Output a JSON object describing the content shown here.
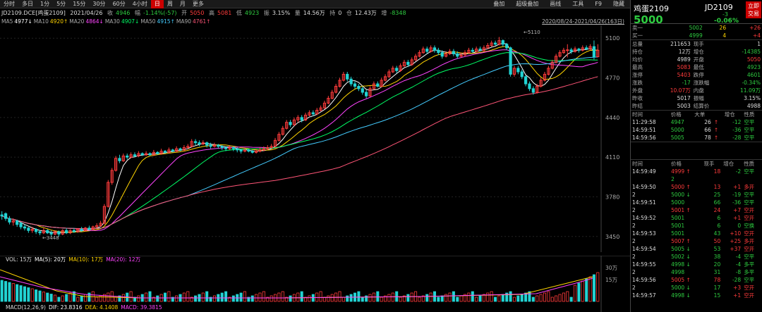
{
  "toolbar": {
    "items": [
      "分时",
      "多日",
      "1分",
      "5分",
      "15分",
      "30分",
      "60分",
      "4小时",
      "日",
      "周",
      "月",
      "更多"
    ],
    "active_index": 8,
    "right_items": [
      "叠加",
      "超级叠加",
      "画线",
      "工具",
      "F9",
      "隐藏"
    ]
  },
  "info": {
    "code": "JD2109.DCE[鸡蛋2109]",
    "date": "2021/04/26",
    "close_label": "收",
    "close_value": "4946",
    "change_label": "幅",
    "change_value": "-1.14%(-57)",
    "open_label": "开",
    "open_value": "5050",
    "high_label": "高",
    "high_value": "5081",
    "low_label": "低",
    "low_value": "4923",
    "amp_label": "振",
    "amp_value": "3.15%",
    "vol_label": "量",
    "vol_value": "14.56万",
    "pos_label": "持",
    "pos_value": "0",
    "amt_label": "仓",
    "amt_value": "12.43万",
    "inc_label": "增",
    "inc_value": "-8348"
  },
  "ma": [
    {
      "label": "MA5",
      "value": "4977↓",
      "color": "#ffffff"
    },
    {
      "label": "MA10",
      "value": "4920↑",
      "color": "#ffd400"
    },
    {
      "label": "MA20",
      "value": "4864↓",
      "color": "#ff44ff"
    },
    {
      "label": "MA30",
      "value": "4907↓",
      "color": "#00ff66"
    },
    {
      "label": "MA50",
      "value": "4915↑",
      "color": "#44ccff"
    },
    {
      "label": "MA90",
      "value": "4761↑",
      "color": "#ff5577"
    }
  ],
  "range_label": "2020/08/24-2021/04/26(163日)",
  "chart_data": {
    "type": "candlestick",
    "y_ticks": [
      "5100",
      "4770",
      "4440",
      "4110",
      "3780",
      "3450"
    ],
    "ylim": [
      3390,
      5160
    ],
    "high_label": "5110",
    "low_label": "3448",
    "candles": [
      [
        3630,
        3620,
        3660,
        3590
      ],
      [
        3640,
        3600,
        3650,
        3580
      ],
      [
        3600,
        3570,
        3620,
        3550
      ],
      [
        3570,
        3580,
        3600,
        3540
      ],
      [
        3580,
        3550,
        3590,
        3530
      ],
      [
        3560,
        3530,
        3570,
        3510
      ],
      [
        3530,
        3520,
        3550,
        3500
      ],
      [
        3520,
        3500,
        3530,
        3480
      ],
      [
        3500,
        3510,
        3530,
        3480
      ],
      [
        3510,
        3490,
        3520,
        3470
      ],
      [
        3490,
        3480,
        3500,
        3460
      ],
      [
        3480,
        3500,
        3520,
        3470
      ],
      [
        3500,
        3480,
        3510,
        3470
      ],
      [
        3480,
        3470,
        3500,
        3450
      ],
      [
        3470,
        3490,
        3500,
        3460
      ],
      [
        3490,
        3470,
        3500,
        3448
      ],
      [
        3470,
        3500,
        3510,
        3460
      ],
      [
        3500,
        3480,
        3520,
        3470
      ],
      [
        3480,
        3500,
        3510,
        3470
      ],
      [
        3500,
        3490,
        3520,
        3480
      ],
      [
        3490,
        3510,
        3520,
        3480
      ],
      [
        3510,
        3500,
        3530,
        3490
      ],
      [
        3500,
        3520,
        3530,
        3490
      ],
      [
        3520,
        3510,
        3540,
        3500
      ],
      [
        3510,
        3530,
        3540,
        3500
      ],
      [
        3530,
        3540,
        3560,
        3520
      ],
      [
        3540,
        3560,
        3580,
        3530
      ],
      [
        3560,
        3700,
        3720,
        3550
      ],
      [
        3700,
        3900,
        3920,
        3690
      ],
      [
        3900,
        4000,
        4020,
        3880
      ],
      [
        4000,
        4100,
        4120,
        3990
      ],
      [
        4100,
        4080,
        4130,
        4060
      ],
      [
        4080,
        4120,
        4140,
        4070
      ],
      [
        4120,
        4110,
        4140,
        4090
      ],
      [
        4110,
        4130,
        4150,
        4100
      ],
      [
        4130,
        4120,
        4150,
        4110
      ],
      [
        4120,
        4140,
        4160,
        4110
      ],
      [
        4140,
        4130,
        4150,
        4120
      ],
      [
        4130,
        4140,
        4160,
        4120
      ],
      [
        4140,
        4130,
        4150,
        4120
      ],
      [
        4130,
        4150,
        4170,
        4120
      ],
      [
        4150,
        4140,
        4160,
        4130
      ],
      [
        4140,
        4160,
        4180,
        4130
      ],
      [
        4160,
        4150,
        4170,
        4140
      ],
      [
        4150,
        4170,
        4190,
        4140
      ],
      [
        4170,
        4160,
        4180,
        4150
      ],
      [
        4160,
        4180,
        4200,
        4150
      ],
      [
        4180,
        4170,
        4190,
        4160
      ],
      [
        4170,
        4190,
        4210,
        4160
      ],
      [
        4190,
        4200,
        4220,
        4180
      ],
      [
        4200,
        4240,
        4260,
        4190
      ],
      [
        4240,
        4230,
        4260,
        4210
      ],
      [
        4230,
        4220,
        4250,
        4200
      ],
      [
        4220,
        4230,
        4250,
        4210
      ],
      [
        4230,
        4210,
        4240,
        4190
      ],
      [
        4210,
        4200,
        4230,
        4180
      ],
      [
        4200,
        4210,
        4230,
        4190
      ],
      [
        4210,
        4200,
        4220,
        4180
      ],
      [
        4200,
        4190,
        4210,
        4170
      ],
      [
        4190,
        4180,
        4200,
        4160
      ],
      [
        4180,
        4190,
        4210,
        4170
      ],
      [
        4190,
        4180,
        4200,
        4160
      ],
      [
        4180,
        4170,
        4190,
        4150
      ],
      [
        4170,
        4160,
        4180,
        4140
      ],
      [
        4160,
        4170,
        4190,
        4150
      ],
      [
        4170,
        4160,
        4180,
        4150
      ],
      [
        4160,
        4150,
        4170,
        4140
      ],
      [
        4150,
        4160,
        4180,
        4140
      ],
      [
        4160,
        4170,
        4190,
        4150
      ],
      [
        4170,
        4180,
        4200,
        4160
      ],
      [
        4180,
        4190,
        4210,
        4170
      ],
      [
        4190,
        4200,
        4220,
        4180
      ],
      [
        4200,
        4250,
        4270,
        4190
      ],
      [
        4250,
        4300,
        4320,
        4240
      ],
      [
        4300,
        4350,
        4370,
        4290
      ],
      [
        4350,
        4400,
        4420,
        4340
      ],
      [
        4400,
        4380,
        4420,
        4360
      ],
      [
        4380,
        4420,
        4440,
        4370
      ],
      [
        4420,
        4440,
        4460,
        4400
      ],
      [
        4440,
        4420,
        4460,
        4400
      ],
      [
        4420,
        4460,
        4480,
        4410
      ],
      [
        4460,
        4480,
        4500,
        4450
      ],
      [
        4480,
        4470,
        4500,
        4450
      ],
      [
        4470,
        4500,
        4520,
        4460
      ],
      [
        4500,
        4520,
        4540,
        4490
      ],
      [
        4520,
        4560,
        4580,
        4510
      ],
      [
        4560,
        4600,
        4620,
        4550
      ],
      [
        4600,
        4650,
        4670,
        4590
      ],
      [
        4650,
        4700,
        4720,
        4640
      ],
      [
        4700,
        4750,
        4770,
        4690
      ],
      [
        4750,
        4800,
        4820,
        4740
      ],
      [
        4800,
        4760,
        4820,
        4740
      ],
      [
        4760,
        4720,
        4780,
        4700
      ],
      [
        4720,
        4700,
        4740,
        4680
      ],
      [
        4700,
        4680,
        4720,
        4660
      ],
      [
        4680,
        4650,
        4700,
        4630
      ],
      [
        4650,
        4620,
        4670,
        4600
      ],
      [
        4620,
        4680,
        4700,
        4610
      ],
      [
        4680,
        4720,
        4740,
        4670
      ],
      [
        4720,
        4700,
        4740,
        4690
      ],
      [
        4700,
        4750,
        4770,
        4690
      ],
      [
        4750,
        4780,
        4800,
        4740
      ],
      [
        4780,
        4820,
        4840,
        4770
      ],
      [
        4820,
        4850,
        4870,
        4810
      ],
      [
        4850,
        4830,
        4870,
        4810
      ],
      [
        4830,
        4870,
        4890,
        4820
      ],
      [
        4870,
        4900,
        4920,
        4860
      ],
      [
        4900,
        4880,
        4920,
        4860
      ],
      [
        4880,
        4920,
        4940,
        4870
      ],
      [
        4920,
        4950,
        4970,
        4910
      ],
      [
        4950,
        4980,
        5000,
        4940
      ],
      [
        4980,
        5010,
        5030,
        4970
      ],
      [
        5010,
        4990,
        5030,
        4970
      ],
      [
        4990,
        5020,
        5040,
        4980
      ],
      [
        5020,
        5000,
        5040,
        4980
      ],
      [
        5000,
        4980,
        5020,
        4960
      ],
      [
        4980,
        4950,
        5000,
        4930
      ],
      [
        4950,
        4970,
        4990,
        4940
      ],
      [
        4970,
        4990,
        5010,
        4960
      ],
      [
        4990,
        4970,
        5010,
        4950
      ],
      [
        4970,
        4950,
        4990,
        4930
      ],
      [
        4950,
        4960,
        4980,
        4940
      ],
      [
        4960,
        4980,
        5000,
        4950
      ],
      [
        4980,
        5000,
        5020,
        4970
      ],
      [
        5000,
        4990,
        5020,
        4980
      ],
      [
        4990,
        5010,
        5030,
        4980
      ],
      [
        5010,
        5000,
        5030,
        4990
      ],
      [
        5000,
        5020,
        5040,
        4990
      ],
      [
        5020,
        5040,
        5060,
        5010
      ],
      [
        5040,
        5060,
        5080,
        5030
      ],
      [
        5060,
        5050,
        5080,
        5040
      ],
      [
        5050,
        5080,
        5110,
        5040
      ],
      [
        5080,
        5050,
        5090,
        5030
      ],
      [
        5050,
        5020,
        5060,
        5000
      ],
      [
        5020,
        4800,
        5030,
        4780
      ],
      [
        4800,
        4850,
        4870,
        4780
      ],
      [
        4850,
        4820,
        4870,
        4800
      ],
      [
        4820,
        4780,
        4840,
        4760
      ],
      [
        4780,
        4720,
        4790,
        4700
      ],
      [
        4720,
        4680,
        4740,
        4660
      ],
      [
        4680,
        4650,
        4700,
        4630
      ],
      [
        4650,
        4700,
        4720,
        4640
      ],
      [
        4700,
        4750,
        4770,
        4690
      ],
      [
        4750,
        4800,
        4820,
        4740
      ],
      [
        4800,
        4850,
        4870,
        4790
      ],
      [
        4850,
        4900,
        4920,
        4840
      ],
      [
        4900,
        4950,
        4970,
        4890
      ],
      [
        4950,
        4980,
        5000,
        4940
      ],
      [
        4980,
        5000,
        5020,
        4970
      ],
      [
        5000,
        5003,
        5050,
        4940
      ],
      [
        5003,
        4990,
        5020,
        4970
      ],
      [
        4990,
        5010,
        5030,
        4980
      ],
      [
        5010,
        5000,
        5020,
        4980
      ],
      [
        5000,
        5020,
        5040,
        4990
      ],
      [
        5020,
        5010,
        5040,
        5000
      ],
      [
        5010,
        5030,
        5050,
        5000
      ],
      [
        5030,
        4946,
        5081,
        4923
      ],
      [
        4946,
        5000,
        5050,
        4940
      ]
    ]
  },
  "volume": {
    "label": "VOL: 15万",
    "ma5": "MA(5): 20万",
    "ma10": "MA(10): 17万",
    "ma20": "MA(20): 12万",
    "ticks": [
      "30万",
      "15万"
    ]
  },
  "macd": {
    "label": "MACD(12,26,9)",
    "dif": "DIF: 23.8316",
    "dea": "DEA: 4.1408",
    "macd": "MACD: 39.3815"
  },
  "quote": {
    "name": "鸡蛋2109",
    "code": "JD2109",
    "price": "5000",
    "change": "-3",
    "pct": "-0.06%",
    "trade_btn_1": "立即",
    "trade_btn_2": "交易",
    "book": [
      {
        "label": "卖一",
        "price": "5002",
        "qty": "26",
        "chg": "+26"
      },
      {
        "label": "买一",
        "price": "4999",
        "qty": "4",
        "chg": "+4"
      }
    ],
    "stats": [
      {
        "l1": "总量",
        "v1": "211653",
        "l2": "现手",
        "v2": "1"
      },
      {
        "l1": "持仓",
        "v1": "12万",
        "l2": "增仓",
        "v2": "-14385"
      },
      {
        "l1": "均价",
        "v1": "4989",
        "l2": "开盘",
        "v2": "5050"
      },
      {
        "l1": "最高",
        "v1": "5083",
        "l2": "最低",
        "v2": "4923"
      },
      {
        "l1": "涨停",
        "v1": "5403",
        "l2": "跌停",
        "v2": "4601"
      },
      {
        "l1": "涨跌",
        "v1": "-17",
        "l2": "涨跌幅",
        "v2": "-0.34%"
      },
      {
        "l1": "外盘",
        "v1": "10.07万",
        "l2": "内盘",
        "v2": "11.09万"
      },
      {
        "l1": "昨收",
        "v1": "5017",
        "l2": "振幅",
        "v2": "3.15%"
      },
      {
        "l1": "昨结",
        "v1": "5003",
        "l2": "结算价",
        "v2": "4988"
      }
    ],
    "big_head": [
      "时间",
      "价格",
      "大单",
      "",
      "增仓",
      "性质"
    ],
    "big_orders": [
      {
        "time": "11:29:58",
        "price": "4947",
        "qty": "26",
        "inc": "-12",
        "type": "空平"
      },
      {
        "time": "14:59:51",
        "price": "5000",
        "qty": "66",
        "inc": "-36",
        "type": "空平"
      },
      {
        "time": "14:59:56",
        "price": "5005",
        "qty": "78",
        "inc": "-28",
        "type": "空平"
      }
    ],
    "tick_head": [
      "时间",
      "价格",
      "现手",
      "增仓",
      "性质"
    ],
    "ticks": [
      {
        "time": "14:59:49",
        "price": "4999",
        "dir": "up",
        "qty": "18",
        "inc": "-2",
        "type": "空平"
      },
      {
        "time": "",
        "price": "2",
        "dir": "",
        "qty": "",
        "inc": "",
        "type": ""
      },
      {
        "time": "14:59:50",
        "price": "5000",
        "dir": "up",
        "qty": "13",
        "inc": "+1",
        "type": "多开"
      },
      {
        "time": "2",
        "price": "5000",
        "dir": "dn",
        "qty": "25",
        "inc": "-19",
        "type": "空平"
      },
      {
        "time": "14:59:51",
        "price": "5000",
        "dir": "",
        "qty": "66",
        "inc": "-36",
        "type": "空平"
      },
      {
        "time": "2",
        "price": "5001",
        "dir": "up",
        "qty": "24",
        "inc": "+7",
        "type": "空开"
      },
      {
        "time": "14:59:52",
        "price": "5001",
        "dir": "",
        "qty": "6",
        "inc": "+1",
        "type": "空开"
      },
      {
        "time": "2",
        "price": "5001",
        "dir": "",
        "qty": "6",
        "inc": "0",
        "type": "空换"
      },
      {
        "time": "14:59:53",
        "price": "5001",
        "dir": "",
        "qty": "43",
        "inc": "+10",
        "type": "空开"
      },
      {
        "time": "2",
        "price": "5007",
        "dir": "up",
        "qty": "50",
        "inc": "+25",
        "type": "多开"
      },
      {
        "time": "14:59:54",
        "price": "5005",
        "dir": "dn",
        "qty": "53",
        "inc": "+37",
        "type": "空开"
      },
      {
        "time": "2",
        "price": "5002",
        "dir": "dn",
        "qty": "38",
        "inc": "-4",
        "type": "空平"
      },
      {
        "time": "14:59:55",
        "price": "4998",
        "dir": "dn",
        "qty": "20",
        "inc": "-4",
        "type": "多平"
      },
      {
        "time": "2",
        "price": "4998",
        "dir": "",
        "qty": "31",
        "inc": "-8",
        "type": "多平"
      },
      {
        "time": "14:59:56",
        "price": "5005",
        "dir": "up",
        "qty": "78",
        "inc": "-28",
        "type": "空平"
      },
      {
        "time": "2",
        "price": "5000",
        "dir": "dn",
        "qty": "17",
        "inc": "+3",
        "type": "空开"
      },
      {
        "time": "14:59:57",
        "price": "4998",
        "dir": "dn",
        "qty": "15",
        "inc": "+1",
        "type": "空开"
      }
    ]
  }
}
